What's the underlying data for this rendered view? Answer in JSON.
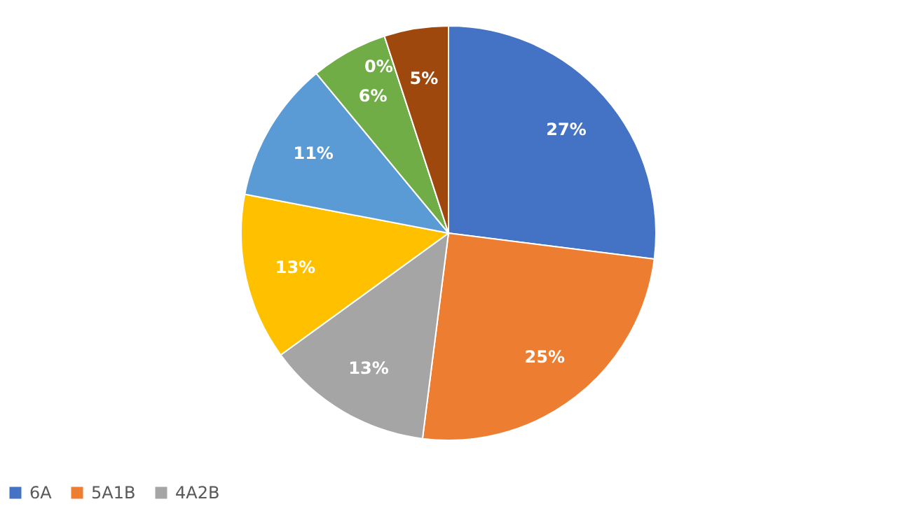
{
  "chart_data": {
    "type": "pie",
    "categories": [
      "6A",
      "5A1B",
      "4A2B",
      null,
      null,
      null,
      null,
      null
    ],
    "values": [
      27,
      25,
      13,
      13,
      11,
      6,
      0,
      5
    ],
    "value_labels": [
      "27%",
      "25%",
      "13%",
      "13%",
      "11%",
      "6%",
      "0%",
      "5%"
    ],
    "colors": [
      "#4472c4",
      "#ed7d31",
      "#a5a5a5",
      "#ffc000",
      "#5b9bd5",
      "#70ad47",
      "#264478",
      "#9e480e"
    ],
    "legend": "bottom"
  }
}
